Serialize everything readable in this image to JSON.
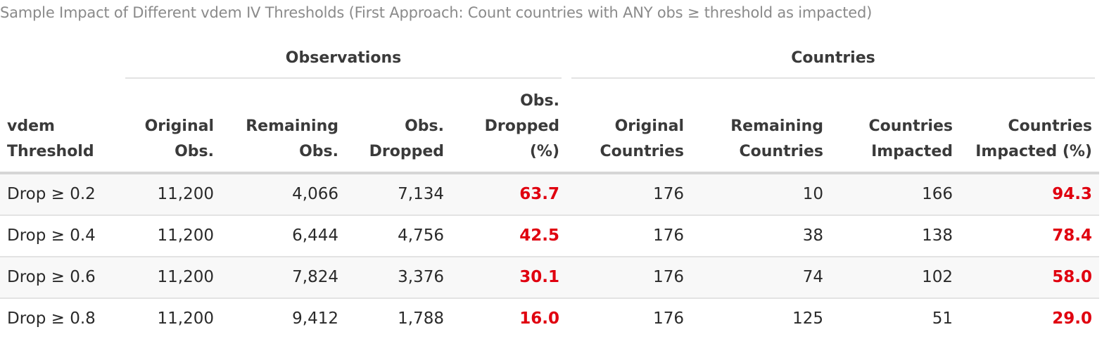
{
  "caption": "Sample Impact of Different vdem IV Thresholds (First Approach: Count countries with ANY obs ≥ threshold as impacted)",
  "spanners": {
    "observations": "Observations",
    "countries": "Countries"
  },
  "columns": [
    {
      "lines": [
        "vdem",
        "Threshold"
      ]
    },
    {
      "lines": [
        "Original",
        "Obs."
      ]
    },
    {
      "lines": [
        "Remaining",
        "Obs."
      ]
    },
    {
      "lines": [
        "Obs.",
        "Dropped"
      ]
    },
    {
      "lines": [
        "Obs.",
        "Dropped",
        "(%)"
      ]
    },
    {
      "lines": [
        "Original",
        "Countries"
      ]
    },
    {
      "lines": [
        "Remaining",
        "Countries"
      ]
    },
    {
      "lines": [
        "Countries",
        "Impacted"
      ]
    },
    {
      "lines": [
        "Countries",
        "Impacted (%)"
      ]
    }
  ],
  "rows": [
    [
      "Drop ≥ 0.2",
      "11,200",
      "4,066",
      "7,134",
      "63.7",
      "176",
      "10",
      "166",
      "94.3"
    ],
    [
      "Drop ≥ 0.4",
      "11,200",
      "6,444",
      "4,756",
      "42.5",
      "176",
      "38",
      "138",
      "78.4"
    ],
    [
      "Drop ≥ 0.6",
      "11,200",
      "7,824",
      "3,376",
      "30.1",
      "176",
      "74",
      "102",
      "58.0"
    ],
    [
      "Drop ≥ 0.8",
      "11,200",
      "9,412",
      "1,788",
      "16.0",
      "176",
      "125",
      "51",
      "29.0"
    ]
  ],
  "highlight_color": "#e0000f"
}
